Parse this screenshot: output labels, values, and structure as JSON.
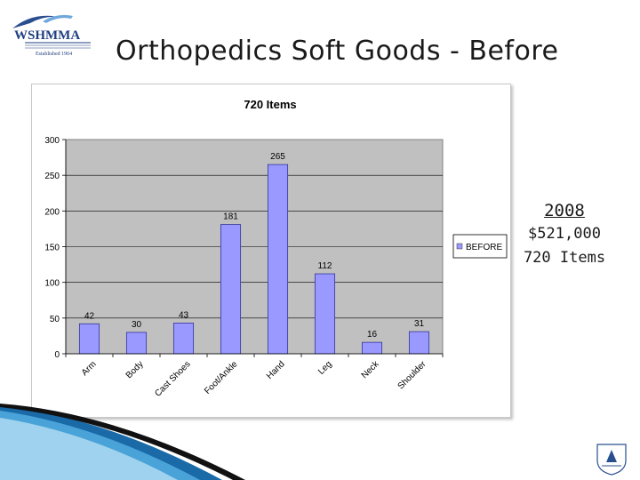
{
  "slide": {
    "title": "Orthopedics Soft Goods - Before",
    "logo_text": "WSHMMA",
    "logo_subtext": "Established 1964",
    "info_year": "2008",
    "info_amount": "$521,000",
    "info_items": "720 Items"
  },
  "colors": {
    "bar_fill": "#9999ff",
    "plot_bg": "#c0c0c0",
    "accent_blue": "#1f6fb0"
  },
  "chart_data": {
    "type": "bar",
    "title": "720 Items",
    "categories": [
      "Arm",
      "Body",
      "Cast Shoes",
      "Foot/Ankle",
      "Hand",
      "Leg",
      "Neck",
      "Shoulder"
    ],
    "series": [
      {
        "name": "BEFORE",
        "values": [
          42,
          30,
          43,
          181,
          265,
          112,
          16,
          31
        ]
      }
    ],
    "ylim": [
      0,
      300
    ],
    "yticks": [
      "0",
      "50",
      "100",
      "150",
      "200",
      "250",
      "300"
    ],
    "data_labels": [
      "42",
      "30",
      "43",
      "181",
      "265",
      "112",
      "16",
      "31"
    ],
    "grid": true,
    "legend_position": "right"
  }
}
